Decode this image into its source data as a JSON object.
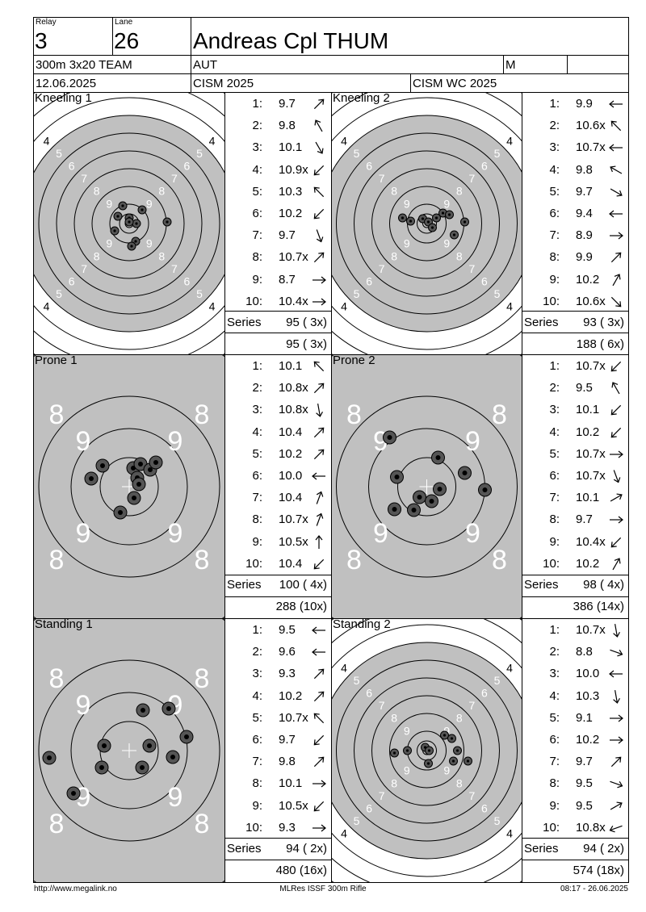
{
  "header": {
    "relay_label": "Relay",
    "relay": "3",
    "lane_label": "Lane",
    "lane": "26",
    "name": "Andreas Cpl THUM",
    "event": "300m 3x20 TEAM",
    "nation": "AUT",
    "gender": "M",
    "date": "12.06.2025",
    "competition": "CISM 2025",
    "competition2": "CISM WC 2025"
  },
  "series_label": "Series",
  "positions": [
    {
      "title": "Kneeling 1",
      "target": "kneel",
      "series": "95 ( 3x)",
      "cumulative": "95 ( 3x)",
      "shots": [
        {
          "n": "1:",
          "v": "9.7",
          "dir": 45
        },
        {
          "n": "2:",
          "v": "9.8",
          "dir": -30
        },
        {
          "n": "3:",
          "v": "10.1",
          "dir": 150
        },
        {
          "n": "4:",
          "v": "10.9x",
          "dir": 225
        },
        {
          "n": "5:",
          "v": "10.3",
          "dir": -45
        },
        {
          "n": "6:",
          "v": "10.2",
          "dir": 225
        },
        {
          "n": "7:",
          "v": "9.7",
          "dir": 160
        },
        {
          "n": "8:",
          "v": "10.7x",
          "dir": 45
        },
        {
          "n": "9:",
          "v": "8.7",
          "dir": 90
        },
        {
          "n": "10:",
          "v": "10.4x",
          "dir": 90
        }
      ],
      "holes": [
        [
          -8,
          -22
        ],
        [
          16,
          -17
        ],
        [
          -14,
          -9
        ],
        [
          0,
          -7
        ],
        [
          9,
          0
        ],
        [
          -18,
          9
        ],
        [
          47,
          -2
        ],
        [
          8,
          22
        ],
        [
          3,
          28
        ],
        [
          0,
          -2
        ]
      ]
    },
    {
      "title": "Kneeling 2",
      "target": "kneel",
      "series": "93 ( 3x)",
      "cumulative": "188 ( 6x)",
      "shots": [
        {
          "n": "1:",
          "v": "9.9",
          "dir": 270
        },
        {
          "n": "2:",
          "v": "10.6x",
          "dir": -45
        },
        {
          "n": "3:",
          "v": "10.7x",
          "dir": 270
        },
        {
          "n": "4:",
          "v": "9.8",
          "dir": -60
        },
        {
          "n": "5:",
          "v": "9.7",
          "dir": 120
        },
        {
          "n": "6:",
          "v": "9.4",
          "dir": 270
        },
        {
          "n": "7:",
          "v": "8.9",
          "dir": 90
        },
        {
          "n": "8:",
          "v": "9.9",
          "dir": 45
        },
        {
          "n": "9:",
          "v": "10.2",
          "dir": 30
        },
        {
          "n": "10:",
          "v": "10.6x",
          "dir": 135
        }
      ],
      "holes": [
        [
          -30,
          -7
        ],
        [
          -20,
          -3
        ],
        [
          -5,
          -6
        ],
        [
          2,
          -2
        ],
        [
          7,
          5
        ],
        [
          20,
          -13
        ],
        [
          28,
          -11
        ],
        [
          12,
          -7
        ],
        [
          47,
          -2
        ],
        [
          34,
          14
        ]
      ]
    },
    {
      "title": "Prone 1",
      "target": "prone",
      "series": "100 ( 4x)",
      "cumulative": "288 (10x)",
      "shots": [
        {
          "n": "1:",
          "v": "10.1",
          "dir": -45
        },
        {
          "n": "2:",
          "v": "10.8x",
          "dir": 45
        },
        {
          "n": "3:",
          "v": "10.8x",
          "dir": 170
        },
        {
          "n": "4:",
          "v": "10.4",
          "dir": 45
        },
        {
          "n": "5:",
          "v": "10.2",
          "dir": 45
        },
        {
          "n": "6:",
          "v": "10.0",
          "dir": 270
        },
        {
          "n": "7:",
          "v": "10.4",
          "dir": 20
        },
        {
          "n": "8:",
          "v": "10.7x",
          "dir": 20
        },
        {
          "n": "9:",
          "v": "10.5x",
          "dir": 0
        },
        {
          "n": "10:",
          "v": "10.4",
          "dir": 225
        }
      ],
      "holes": [
        [
          -33,
          -26
        ],
        [
          -47,
          -10
        ],
        [
          5,
          -23
        ],
        [
          14,
          -28
        ],
        [
          26,
          -21
        ],
        [
          33,
          -30
        ],
        [
          10,
          -11
        ],
        [
          12,
          -3
        ],
        [
          6,
          14
        ],
        [
          -11,
          32
        ]
      ]
    },
    {
      "title": "Prone 2",
      "target": "prone",
      "series": "98 ( 4x)",
      "cumulative": "386 (14x)",
      "shots": [
        {
          "n": "1:",
          "v": "10.7x",
          "dir": 225
        },
        {
          "n": "2:",
          "v": "9.5",
          "dir": -30
        },
        {
          "n": "3:",
          "v": "10.1",
          "dir": 225
        },
        {
          "n": "4:",
          "v": "10.2",
          "dir": 225
        },
        {
          "n": "5:",
          "v": "10.7x",
          "dir": 90
        },
        {
          "n": "6:",
          "v": "10.7x",
          "dir": 160
        },
        {
          "n": "7:",
          "v": "10.1",
          "dir": 60
        },
        {
          "n": "8:",
          "v": "9.7",
          "dir": 90
        },
        {
          "n": "9:",
          "v": "10.4x",
          "dir": 225
        },
        {
          "n": "10:",
          "v": "10.2",
          "dir": 30
        }
      ],
      "holes": [
        [
          -46,
          -61
        ],
        [
          14,
          -36
        ],
        [
          -37,
          -12
        ],
        [
          47,
          -17
        ],
        [
          72,
          4
        ],
        [
          16,
          3
        ],
        [
          -9,
          13
        ],
        [
          6,
          18
        ],
        [
          -16,
          29
        ],
        [
          -40,
          28
        ]
      ]
    },
    {
      "title": "Standing 1",
      "target": "prone",
      "series": "94 ( 2x)",
      "cumulative": "480 (16x)",
      "shots": [
        {
          "n": "1:",
          "v": "9.5",
          "dir": 270
        },
        {
          "n": "2:",
          "v": "9.6",
          "dir": 270
        },
        {
          "n": "3:",
          "v": "9.3",
          "dir": 45
        },
        {
          "n": "4:",
          "v": "10.2",
          "dir": 45
        },
        {
          "n": "5:",
          "v": "10.7x",
          "dir": -45
        },
        {
          "n": "6:",
          "v": "9.7",
          "dir": 225
        },
        {
          "n": "7:",
          "v": "9.8",
          "dir": 45
        },
        {
          "n": "8:",
          "v": "10.1",
          "dir": 90
        },
        {
          "n": "9:",
          "v": "10.5x",
          "dir": 225
        },
        {
          "n": "10:",
          "v": "9.3",
          "dir": 90
        }
      ],
      "holes": [
        [
          -99,
          9
        ],
        [
          -69,
          53
        ],
        [
          -31,
          -6
        ],
        [
          -34,
          21
        ],
        [
          17,
          -50
        ],
        [
          49,
          -52
        ],
        [
          71,
          -17
        ],
        [
          54,
          8
        ],
        [
          25,
          -6
        ],
        [
          16,
          21
        ]
      ]
    },
    {
      "title": "Standing 2",
      "target": "kneel",
      "series": "94 ( 2x)",
      "cumulative": "574 (18x)",
      "shots": [
        {
          "n": "1:",
          "v": "10.7x",
          "dir": 170
        },
        {
          "n": "2:",
          "v": "8.8",
          "dir": 110
        },
        {
          "n": "3:",
          "v": "10.0",
          "dir": 270
        },
        {
          "n": "4:",
          "v": "10.3",
          "dir": 170
        },
        {
          "n": "5:",
          "v": "9.1",
          "dir": 90
        },
        {
          "n": "6:",
          "v": "10.2",
          "dir": 90
        },
        {
          "n": "7:",
          "v": "9.7",
          "dir": 45
        },
        {
          "n": "8:",
          "v": "9.5",
          "dir": 110
        },
        {
          "n": "9:",
          "v": "9.5",
          "dir": 60
        },
        {
          "n": "10:",
          "v": "10.8x",
          "dir": 250
        }
      ],
      "holes": [
        [
          -40,
          3
        ],
        [
          -24,
          0
        ],
        [
          -2,
          -4
        ],
        [
          3,
          0
        ],
        [
          22,
          -19
        ],
        [
          31,
          -15
        ],
        [
          38,
          0
        ],
        [
          51,
          13
        ],
        [
          33,
          13
        ],
        [
          2,
          16
        ]
      ]
    }
  ],
  "footer": {
    "left": "http://www.megalink.no",
    "center": "MLRes ISSF 300m Rifle",
    "right": "08:17 - 26.06.2025"
  }
}
